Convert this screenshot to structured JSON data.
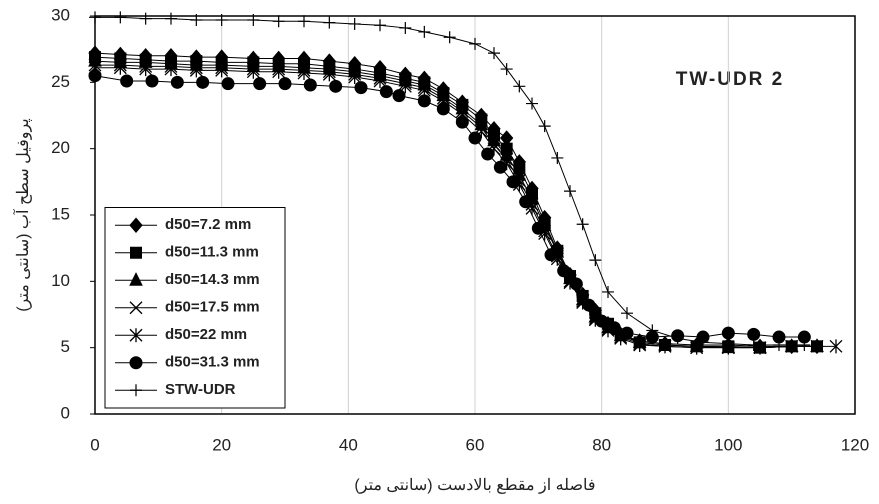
{
  "chart_data": {
    "type": "line",
    "annotation": "TW-UDR 2",
    "x_label": "فاصله از مقطع بالادست (سانتی متر)",
    "y_label": "پروفیل سطح آب (سانتی متر)",
    "xlim": [
      0,
      120
    ],
    "xticks": [
      0,
      20,
      40,
      60,
      80,
      100,
      120
    ],
    "ylim": [
      0,
      30
    ],
    "yticks": [
      0,
      5,
      10,
      15,
      20,
      25,
      30
    ],
    "grid": "x",
    "legend": "lower-left",
    "x": [
      0,
      4,
      8,
      12,
      16,
      20,
      25,
      29,
      33,
      37,
      41,
      45,
      49,
      52,
      55,
      58,
      61,
      63,
      65,
      67,
      69,
      71,
      73,
      75,
      77,
      79,
      81,
      83,
      86,
      90,
      95,
      100,
      105,
      110,
      114
    ],
    "series": [
      {
        "name": "d50=7.2 mm",
        "color": "#000000",
        "marker": "diamond",
        "values": [
          27.2,
          27.1,
          27.0,
          27.0,
          26.9,
          26.9,
          26.8,
          26.8,
          26.8,
          26.6,
          26.4,
          26.1,
          25.6,
          25.3,
          24.5,
          23.5,
          22.5,
          21.5,
          20.8,
          19.0,
          17.0,
          14.8,
          12.5,
          10.5,
          9.0,
          7.8,
          6.8,
          6.0,
          5.5,
          5.3,
          5.2,
          5.2,
          5.1,
          5.1,
          5.1
        ]
      },
      {
        "name": "d50=11.3 mm",
        "color": "#000000",
        "marker": "square",
        "values": [
          26.9,
          26.8,
          26.7,
          26.6,
          26.6,
          26.5,
          26.5,
          26.4,
          26.4,
          26.2,
          26.0,
          25.7,
          25.3,
          25.0,
          24.2,
          23.3,
          22.2,
          21.0,
          20.0,
          18.5,
          16.6,
          14.4,
          12.3,
          10.4,
          8.9,
          7.6,
          6.8,
          6.0,
          5.4,
          5.2,
          5.1,
          5.1,
          5.0,
          5.1,
          5.1
        ]
      },
      {
        "name": "d50=14.3 mm",
        "color": "#000000",
        "marker": "triangle",
        "values": [
          26.6,
          26.5,
          26.5,
          26.4,
          26.3,
          26.3,
          26.2,
          26.2,
          26.1,
          26.0,
          25.8,
          25.5,
          25.1,
          24.8,
          24.0,
          23.0,
          21.8,
          20.6,
          19.5,
          18.0,
          16.2,
          14.2,
          12.2,
          10.2,
          8.6,
          7.3,
          6.5,
          5.9,
          5.4,
          5.2,
          5.1,
          5.0,
          5.0,
          5.1,
          5.1
        ]
      },
      {
        "name": "d50=17.5 mm",
        "color": "#000000",
        "marker": "x",
        "values": [
          26.3,
          26.3,
          26.2,
          26.2,
          26.1,
          26.1,
          26.0,
          26.0,
          25.9,
          25.8,
          25.6,
          25.3,
          24.9,
          24.6,
          23.8,
          22.8,
          21.6,
          20.3,
          19.2,
          17.6,
          15.8,
          13.8,
          11.9,
          10.0,
          8.5,
          7.2,
          6.4,
          5.8,
          5.3,
          5.1,
          5.0,
          5.0,
          5.0,
          5.1,
          5.1
        ]
      },
      {
        "name": "d50=22 mm",
        "color": "#000000",
        "marker": "asterisk",
        "x": [
          0,
          4,
          8,
          12,
          16,
          20,
          25,
          29,
          33,
          37,
          41,
          45,
          49,
          52,
          55,
          58,
          61,
          63,
          65,
          67,
          69,
          71,
          73,
          75,
          77,
          79,
          81,
          83,
          86,
          90,
          95,
          100,
          105,
          110,
          117
        ],
        "values": [
          26.1,
          26.1,
          26.0,
          26.0,
          25.9,
          25.9,
          25.8,
          25.8,
          25.7,
          25.6,
          25.4,
          25.1,
          24.7,
          24.4,
          23.6,
          22.6,
          21.3,
          20.0,
          18.9,
          17.3,
          15.5,
          13.6,
          11.7,
          9.9,
          8.4,
          7.1,
          6.3,
          5.7,
          5.2,
          5.1,
          5.0,
          5.0,
          5.0,
          5.1,
          5.1
        ]
      },
      {
        "name": "d50=31.3 mm",
        "color": "#000000",
        "marker": "circle",
        "x": [
          0,
          5,
          9,
          13,
          17,
          21,
          26,
          30,
          34,
          38,
          42,
          46,
          48,
          52,
          55,
          58,
          60,
          62,
          64,
          66,
          68,
          70,
          72,
          74,
          76,
          78,
          80,
          82,
          84,
          88,
          92,
          96,
          100,
          104,
          108,
          112
        ],
        "values": [
          25.5,
          25.1,
          25.1,
          25.0,
          25.0,
          24.9,
          24.9,
          24.9,
          24.8,
          24.7,
          24.6,
          24.3,
          24.0,
          23.6,
          23.0,
          22.0,
          20.8,
          19.6,
          18.6,
          17.5,
          16.0,
          14.0,
          12.0,
          10.8,
          9.8,
          8.2,
          7.0,
          6.5,
          6.1,
          5.8,
          5.9,
          5.8,
          6.1,
          6.0,
          5.8,
          5.8
        ]
      },
      {
        "name": "STW-UDR",
        "color": "#000000",
        "marker": "plus",
        "x": [
          0,
          4,
          8,
          12,
          16,
          20,
          25,
          29,
          33,
          37,
          41,
          45,
          49,
          52,
          56,
          60,
          63,
          65,
          67,
          69,
          71,
          73,
          75,
          77,
          79,
          81,
          84,
          88,
          92,
          96,
          100,
          104,
          108,
          112
        ],
        "values": [
          29.9,
          29.9,
          29.8,
          29.8,
          29.7,
          29.7,
          29.7,
          29.6,
          29.6,
          29.5,
          29.4,
          29.3,
          29.1,
          28.8,
          28.4,
          27.9,
          27.2,
          26.0,
          24.7,
          23.4,
          21.7,
          19.3,
          16.8,
          14.3,
          11.6,
          9.2,
          7.6,
          6.3,
          5.7,
          5.4,
          5.3,
          5.2,
          5.2,
          5.2
        ]
      }
    ]
  }
}
